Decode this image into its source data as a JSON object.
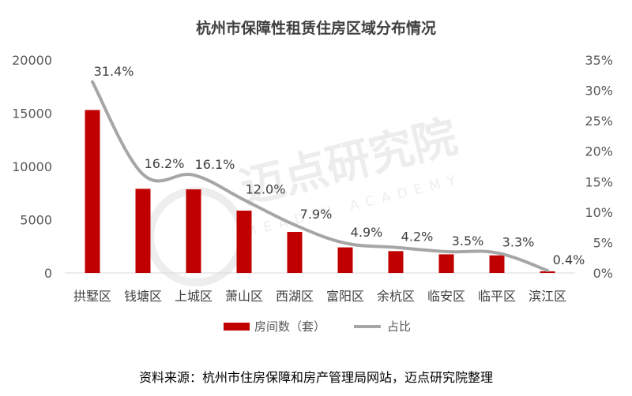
{
  "chart_data": {
    "type": "bar",
    "title": "杭州市保障性租赁住房区域分布情况",
    "categories": [
      "拱墅区",
      "钱塘区",
      "上城区",
      "萧山区",
      "西湖区",
      "富阳区",
      "余杭区",
      "临安区",
      "临平区",
      "滨江区"
    ],
    "series": [
      {
        "name": "房间数（套）",
        "type": "bar",
        "axis": "left",
        "color": "#c00000",
        "values": [
          15300,
          7900,
          7850,
          5850,
          3850,
          2400,
          2050,
          1750,
          1650,
          150
        ]
      },
      {
        "name": "占比",
        "type": "line",
        "axis": "right",
        "color": "#a6a6a6",
        "values": [
          31.4,
          16.2,
          16.1,
          12.0,
          7.9,
          4.9,
          4.2,
          3.5,
          3.3,
          0.4
        ],
        "labels": [
          "31.4%",
          "16.2%",
          "16.1%",
          "12.0%",
          "7.9%",
          "4.9%",
          "4.2%",
          "3.5%",
          "3.3%",
          "0.4%"
        ]
      }
    ],
    "y_left": {
      "range": [
        0,
        20000
      ],
      "ticks": [
        "0",
        "5000",
        "10000",
        "15000",
        "20000"
      ],
      "tick_values": [
        0,
        5000,
        10000,
        15000,
        20000
      ]
    },
    "y_right": {
      "range": [
        0,
        35
      ],
      "ticks": [
        "0%",
        "5%",
        "10%",
        "15%",
        "20%",
        "25%",
        "30%",
        "35%"
      ],
      "tick_values": [
        0,
        5,
        10,
        15,
        20,
        25,
        30,
        35
      ]
    },
    "grid": false,
    "legend_position": "bottom"
  },
  "watermark": {
    "text": "迈点研究院",
    "subtext": "MEADIN ACADEMY",
    "color": "#e6e6e6"
  },
  "source": "资料来源：杭州市住房保障和房产管理局网站，迈点研究院整理"
}
